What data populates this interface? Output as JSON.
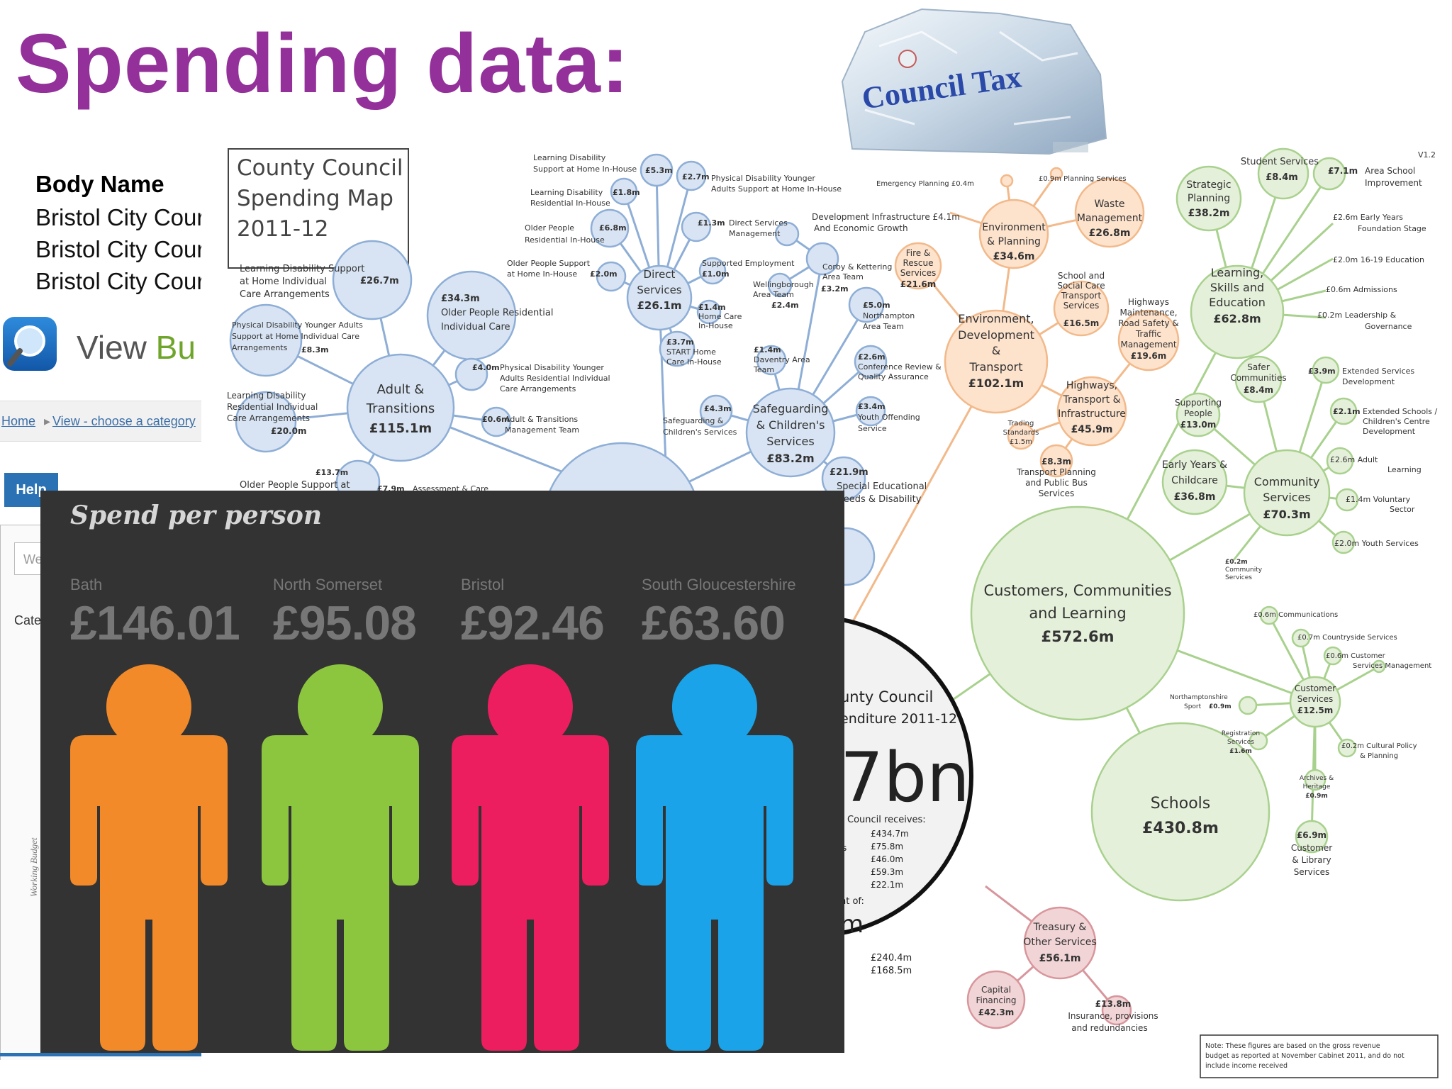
{
  "title": "Spending data:",
  "website": {
    "body_name_header": "Body Name",
    "rows": [
      "Bristol City Cour",
      "Bristol City Cour",
      "Bristol City Cour"
    ],
    "view_prefix": "View ",
    "view_accent": "Bu",
    "breadcrumb": [
      "Home",
      "View - choose a category"
    ],
    "help": "Help",
    "search_placeholder": "We",
    "category_label": "Cate",
    "side_text": "Working Budget"
  },
  "rock": {
    "label": "Council Tax"
  },
  "spend_per_person": {
    "title": "Spend per person",
    "items": [
      {
        "place": "Bath",
        "amount": "£146.01",
        "color": "#f28a2a"
      },
      {
        "place": "North Somerset",
        "amount": "£95.08",
        "color": "#8cc63f"
      },
      {
        "place": "Bristol",
        "amount": "£92.46",
        "color": "#ec1e5f"
      },
      {
        "place": "South Gloucestershire",
        "amount": "£63.60",
        "color": "#1aa3e8"
      }
    ]
  },
  "map": {
    "box_lines": [
      "County Council",
      "Spending Map",
      "2011-12"
    ],
    "version": "V1.2",
    "nodes": {
      "adult": [
        "Adult &",
        "Transitions",
        "£115.1m"
      ],
      "direct": [
        "Direct",
        "Services",
        "£26.1m"
      ],
      "safeguarding": [
        "Safeguarding",
        "& Children's",
        "Services",
        "£83.2m"
      ],
      "env_dev": [
        "Environment,",
        "Development",
        "&",
        "Transport",
        "£102.1m"
      ],
      "env_planning": [
        "Environment",
        "& Planning",
        "£34.6m"
      ],
      "waste": [
        "Waste",
        "Management",
        "£26.8m"
      ],
      "fire": [
        "Fire &",
        "Rescue",
        "Services",
        "£21.6m"
      ],
      "school_transport": [
        "School and",
        "Social Care",
        "Transport",
        "Services",
        "£16.5m"
      ],
      "highways_maint": [
        "Highways",
        "Maintenance,",
        "Road Safety &",
        "Traffic",
        "Management",
        "£19.6m"
      ],
      "highways": [
        "Highways,",
        "Transport &",
        "Infrastructure",
        "£45.9m"
      ],
      "learning": [
        "Learning,",
        "Skills and",
        "Education",
        "£62.8m"
      ],
      "strategic": [
        "Strategic",
        "Planning",
        "£38.2m"
      ],
      "student": [
        "Student Services",
        "£8.4m"
      ],
      "community": [
        "Community",
        "Services",
        "£70.3m"
      ],
      "early_years": [
        "Early Years &",
        "Childcare",
        "£36.8m"
      ],
      "safer": [
        "Safer",
        "Communities",
        "£8.4m"
      ],
      "supporting": [
        "Supporting",
        "People",
        "£13.0m"
      ],
      "customers": [
        "Customers, Communities",
        "and Learning",
        "£572.6m"
      ],
      "customer_services": [
        "Customer",
        "Services",
        "£12.5m"
      ],
      "schools": [
        "Schools",
        "£430.8m"
      ],
      "treasury": [
        "Treasury &",
        "Other Services",
        "£56.1m"
      ],
      "capital": [
        "Capital",
        "Financing",
        "£42.3m"
      ]
    },
    "labels": {
      "ld_home_inhouse": [
        "Learning Disability",
        "Support at Home In-House"
      ],
      "v53": "£5.3m",
      "ld_res_inhouse": [
        "Learning Disability",
        "Residential In-House"
      ],
      "v18": "£1.8m",
      "v27": "£2.7m",
      "pd_home_inhouse": [
        "Physical Disability Younger",
        "Adults Support at Home In-House"
      ],
      "op_res_inhouse": [
        "Older People",
        "Residential In-House"
      ],
      "v68": "£6.8m",
      "v13": "£1.3m",
      "direct_mgmt": [
        "Direct Services",
        "Management"
      ],
      "op_home_inhouse": [
        "Older People Support",
        "at Home In-House"
      ],
      "v20": "£2.0m",
      "supported_emp": [
        "Supported Employment",
        "£1.0m"
      ],
      "home_care": [
        "£1.4m",
        "Home Care",
        "In-House"
      ],
      "start_home": [
        "£3.7m",
        "START Home",
        "Care In-House"
      ],
      "ld_home_individual": [
        "Learning Disability Support",
        "at Home Individual",
        "Care Arrangements"
      ],
      "v267": "£26.7m",
      "op_res_individual": [
        "£34.3m",
        "Older People Residential",
        "Individual Care"
      ],
      "pd_home_individual": [
        "Physical Disability Younger Adults",
        "Support at Home Individual Care",
        "Arrangements"
      ],
      "v83": "£8.3m",
      "pd_res_individual": [
        "Physical Disability Younger",
        "Adults Residential Individual",
        "Care Arrangements"
      ],
      "v40": "£4.0m",
      "ld_res_individual": [
        "Learning Disability",
        "Residential Individual",
        "Care Arrangements",
        "£20.0m"
      ],
      "adult_mgmt": [
        "Adult & Transitions",
        "Management Team"
      ],
      "v06a": "£0.6m",
      "v137": "£13.7m",
      "op_support": "Older People Support at",
      "v79": "£7.9m",
      "assess": "Assessment & Care",
      "corby": [
        "Corby & Kettering",
        "Area Team"
      ],
      "wellingborough": [
        "Wellingborough",
        "Area Team"
      ],
      "v32": "£3.2m",
      "v24": "£2.4m",
      "daventry": [
        "£1.4m",
        "Daventry Area",
        "Team"
      ],
      "northampton": [
        "£5.0m",
        "Northampton",
        "Area Team"
      ],
      "conference": [
        "£2.6m",
        "Conference Review &",
        "Quality Assurance"
      ],
      "v43": "£4.3m",
      "sg_services": [
        "Safeguarding &",
        "Children's Services"
      ],
      "youth_offending": [
        "£3.4m",
        "Youth Offending",
        "Service"
      ],
      "special_ed": [
        "£21.9m",
        "Special Educational",
        "Needs & Disability"
      ],
      "emergency": "Emergency Planning £0.4m",
      "planning_services": "£0.9m Planning Services",
      "dev_infra": [
        "Development Infrastructure £4.1m",
        "And Economic Growth"
      ],
      "trading": [
        "Trading",
        "Standards",
        "£1.5m"
      ],
      "transport_planning": [
        "£8.3m",
        "Transport Planning",
        "and Public Bus",
        "Services"
      ],
      "area_school": [
        "£7.1m",
        "Area School",
        "Improvement"
      ],
      "early_years_fs": [
        "£2.6m Early Years",
        "Foundation Stage"
      ],
      "ed_16_19": "£2.0m 16-19 Education",
      "admissions": "£0.6m Admissions",
      "leadership": [
        "£0.2m Leadership &",
        "Governance"
      ],
      "ext_services": [
        "£3.9m",
        "Extended Services",
        "Development"
      ],
      "ext_schools": [
        "£2.1m",
        "Extended Schools /",
        "Children's Centre",
        "Development"
      ],
      "adult_learning": [
        "£2.6m Adult",
        "Learning"
      ],
      "voluntary": [
        "£1.4m Voluntary",
        "Sector"
      ],
      "youth_services": "£2.0m Youth Services",
      "community_services_small": [
        "£0.2m",
        "Community",
        "Services"
      ],
      "communications": "£0.6m Communications",
      "countryside": "£0.7m Countryside Services",
      "customer_mgmt": [
        "£0.6m Customer",
        "Services Management"
      ],
      "northants_sport": [
        "Northamptonshire",
        "Sport",
        "£0.9m"
      ],
      "registration": [
        "Registration",
        "Services",
        "£1.6m"
      ],
      "cultural": [
        "£0.2m Cultural Policy",
        "& Planning"
      ],
      "archives": [
        "Archives &",
        "Heritage",
        "£0.9m"
      ],
      "library": [
        "£6.9m",
        "Customer",
        "& Library",
        "Services"
      ],
      "insurance": [
        "£13.8m",
        "Insurance, provisions",
        "and redundancies"
      ],
      "big_circle": [
        "unty Council",
        "enditure 2011-12",
        "7bn",
        "Council receives:",
        "£434.7m",
        "£75.8m",
        "£46.0m",
        "£59.3m",
        "£22.1m",
        "nt of:",
        "m",
        "£240.4m",
        "£168.5m",
        "s"
      ],
      "note": [
        "Note: These figures are based on the gross revenue",
        "budget as reported at November Cabinet 2011, and do not",
        "include income received"
      ]
    }
  }
}
